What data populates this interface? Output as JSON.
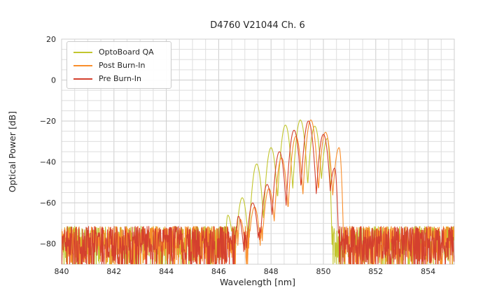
{
  "figure": {
    "title": "D4760 V21044 Ch. 6",
    "text_color": "#262626",
    "background_color": "#ffffff"
  },
  "chart_data": {
    "type": "line",
    "title": "D4760 V21044 Ch. 6",
    "xlabel": "Wavelength [nm]",
    "ylabel": "Optical Power [dB]",
    "xlim": [
      840,
      855
    ],
    "ylim": [
      -90,
      20
    ],
    "x_ticks": [
      840,
      842,
      844,
      846,
      848,
      850,
      852,
      854
    ],
    "y_ticks": [
      20,
      0,
      -20,
      -40,
      -60,
      -80
    ],
    "grid": {
      "on": true,
      "minor_x_step_nm": 0.5,
      "minor_y_step_db": 5,
      "major_color": "#cdcdcd",
      "minor_color": "#dedede",
      "spine_color": "#cfcfcf"
    },
    "legend": {
      "position": "upper-left",
      "border_color": "#cccccc"
    },
    "mode_shape": {
      "in_curvature_db_per_nm2": 400,
      "edge_curvature_db_per_nm2": 1600,
      "mode_spacing_nm": 0.55
    },
    "series": [
      {
        "name": "OptoBoard QA",
        "color": "#c2c62e",
        "seed": 101,
        "noise_floor_db": {
          "top": -71.5,
          "depth": 21
        },
        "modes": [
          {
            "wl": 846.35,
            "db": -66.0
          },
          {
            "wl": 846.9,
            "db": -57.5
          },
          {
            "wl": 847.45,
            "db": -41.0
          },
          {
            "wl": 848.0,
            "db": -33.0
          },
          {
            "wl": 848.55,
            "db": -22.0
          },
          {
            "wl": 849.12,
            "db": -19.5
          },
          {
            "wl": 849.67,
            "db": -22.5
          },
          {
            "wl": 850.15,
            "db": -28.5
          }
        ]
      },
      {
        "name": "Post Burn-In",
        "color": "#f98e2b",
        "seed": 202,
        "noise_floor_db": {
          "top": -71.5,
          "depth": 21
        },
        "modes": [
          {
            "wl": 846.82,
            "db": -68.0
          },
          {
            "wl": 847.37,
            "db": -62.0
          },
          {
            "wl": 847.92,
            "db": -53.0
          },
          {
            "wl": 848.4,
            "db": -38.0
          },
          {
            "wl": 848.95,
            "db": -27.5
          },
          {
            "wl": 849.52,
            "db": -19.5
          },
          {
            "wl": 850.08,
            "db": -25.5
          },
          {
            "wl": 850.6,
            "db": -33.0
          }
        ]
      },
      {
        "name": "Pre Burn-In",
        "color": "#d4402e",
        "seed": 303,
        "noise_floor_db": {
          "top": -71.5,
          "depth": 21
        },
        "modes": [
          {
            "wl": 846.75,
            "db": -66.5
          },
          {
            "wl": 847.3,
            "db": -60.0
          },
          {
            "wl": 847.85,
            "db": -51.0
          },
          {
            "wl": 848.32,
            "db": -35.0
          },
          {
            "wl": 848.88,
            "db": -24.5
          },
          {
            "wl": 849.43,
            "db": -20.0
          },
          {
            "wl": 850.0,
            "db": -26.5
          },
          {
            "wl": 850.43,
            "db": -43.0
          }
        ]
      }
    ]
  }
}
